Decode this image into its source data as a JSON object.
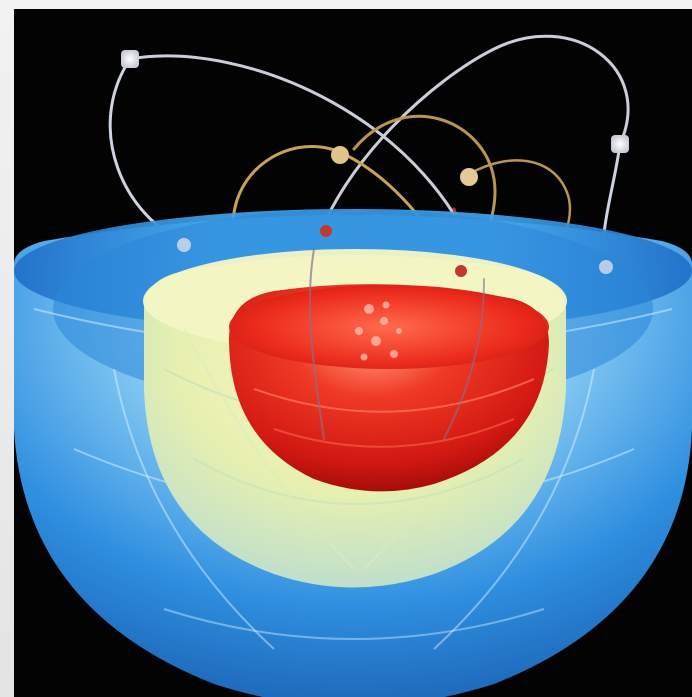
{
  "image": {
    "subject": "atom-model-illustration",
    "colors": {
      "background": "#030303",
      "outer_shell": "#2f8fe0",
      "outer_shell_light": "#bfe6ff",
      "middle_shell": "#e9f2b0",
      "core": "#e8231b",
      "core_highlight": "#ff8a66",
      "orbit_white": "#d9dde6",
      "orbit_gold": "#c8a55a",
      "orbit_red": "#c0352e"
    },
    "icons": [
      "orbit-path",
      "electron-dot",
      "nucleus-hemisphere",
      "shell-layer"
    ]
  }
}
